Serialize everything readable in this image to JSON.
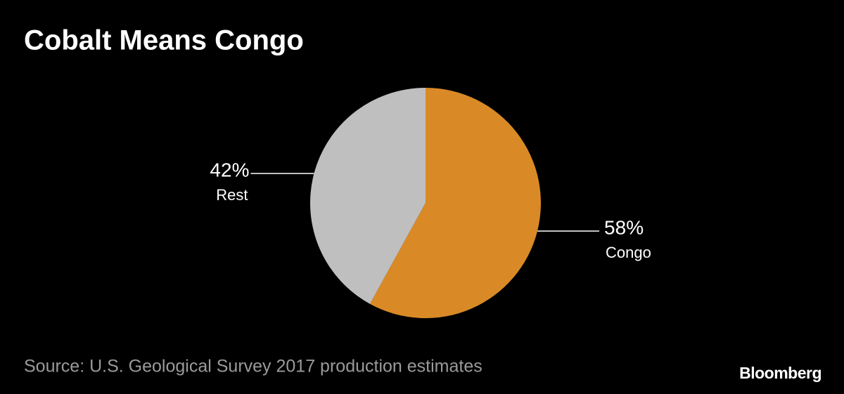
{
  "chart_data": {
    "type": "pie",
    "title": "Cobalt Means Congo",
    "categories": [
      "Congo",
      "Rest"
    ],
    "values": [
      58,
      42
    ],
    "value_labels": [
      "58%",
      "42%"
    ],
    "colors": [
      "#d98a26",
      "#bfbfbf"
    ],
    "source": "Source: U.S. Geological Survey 2017 production estimates",
    "brand": "Bloomberg"
  }
}
